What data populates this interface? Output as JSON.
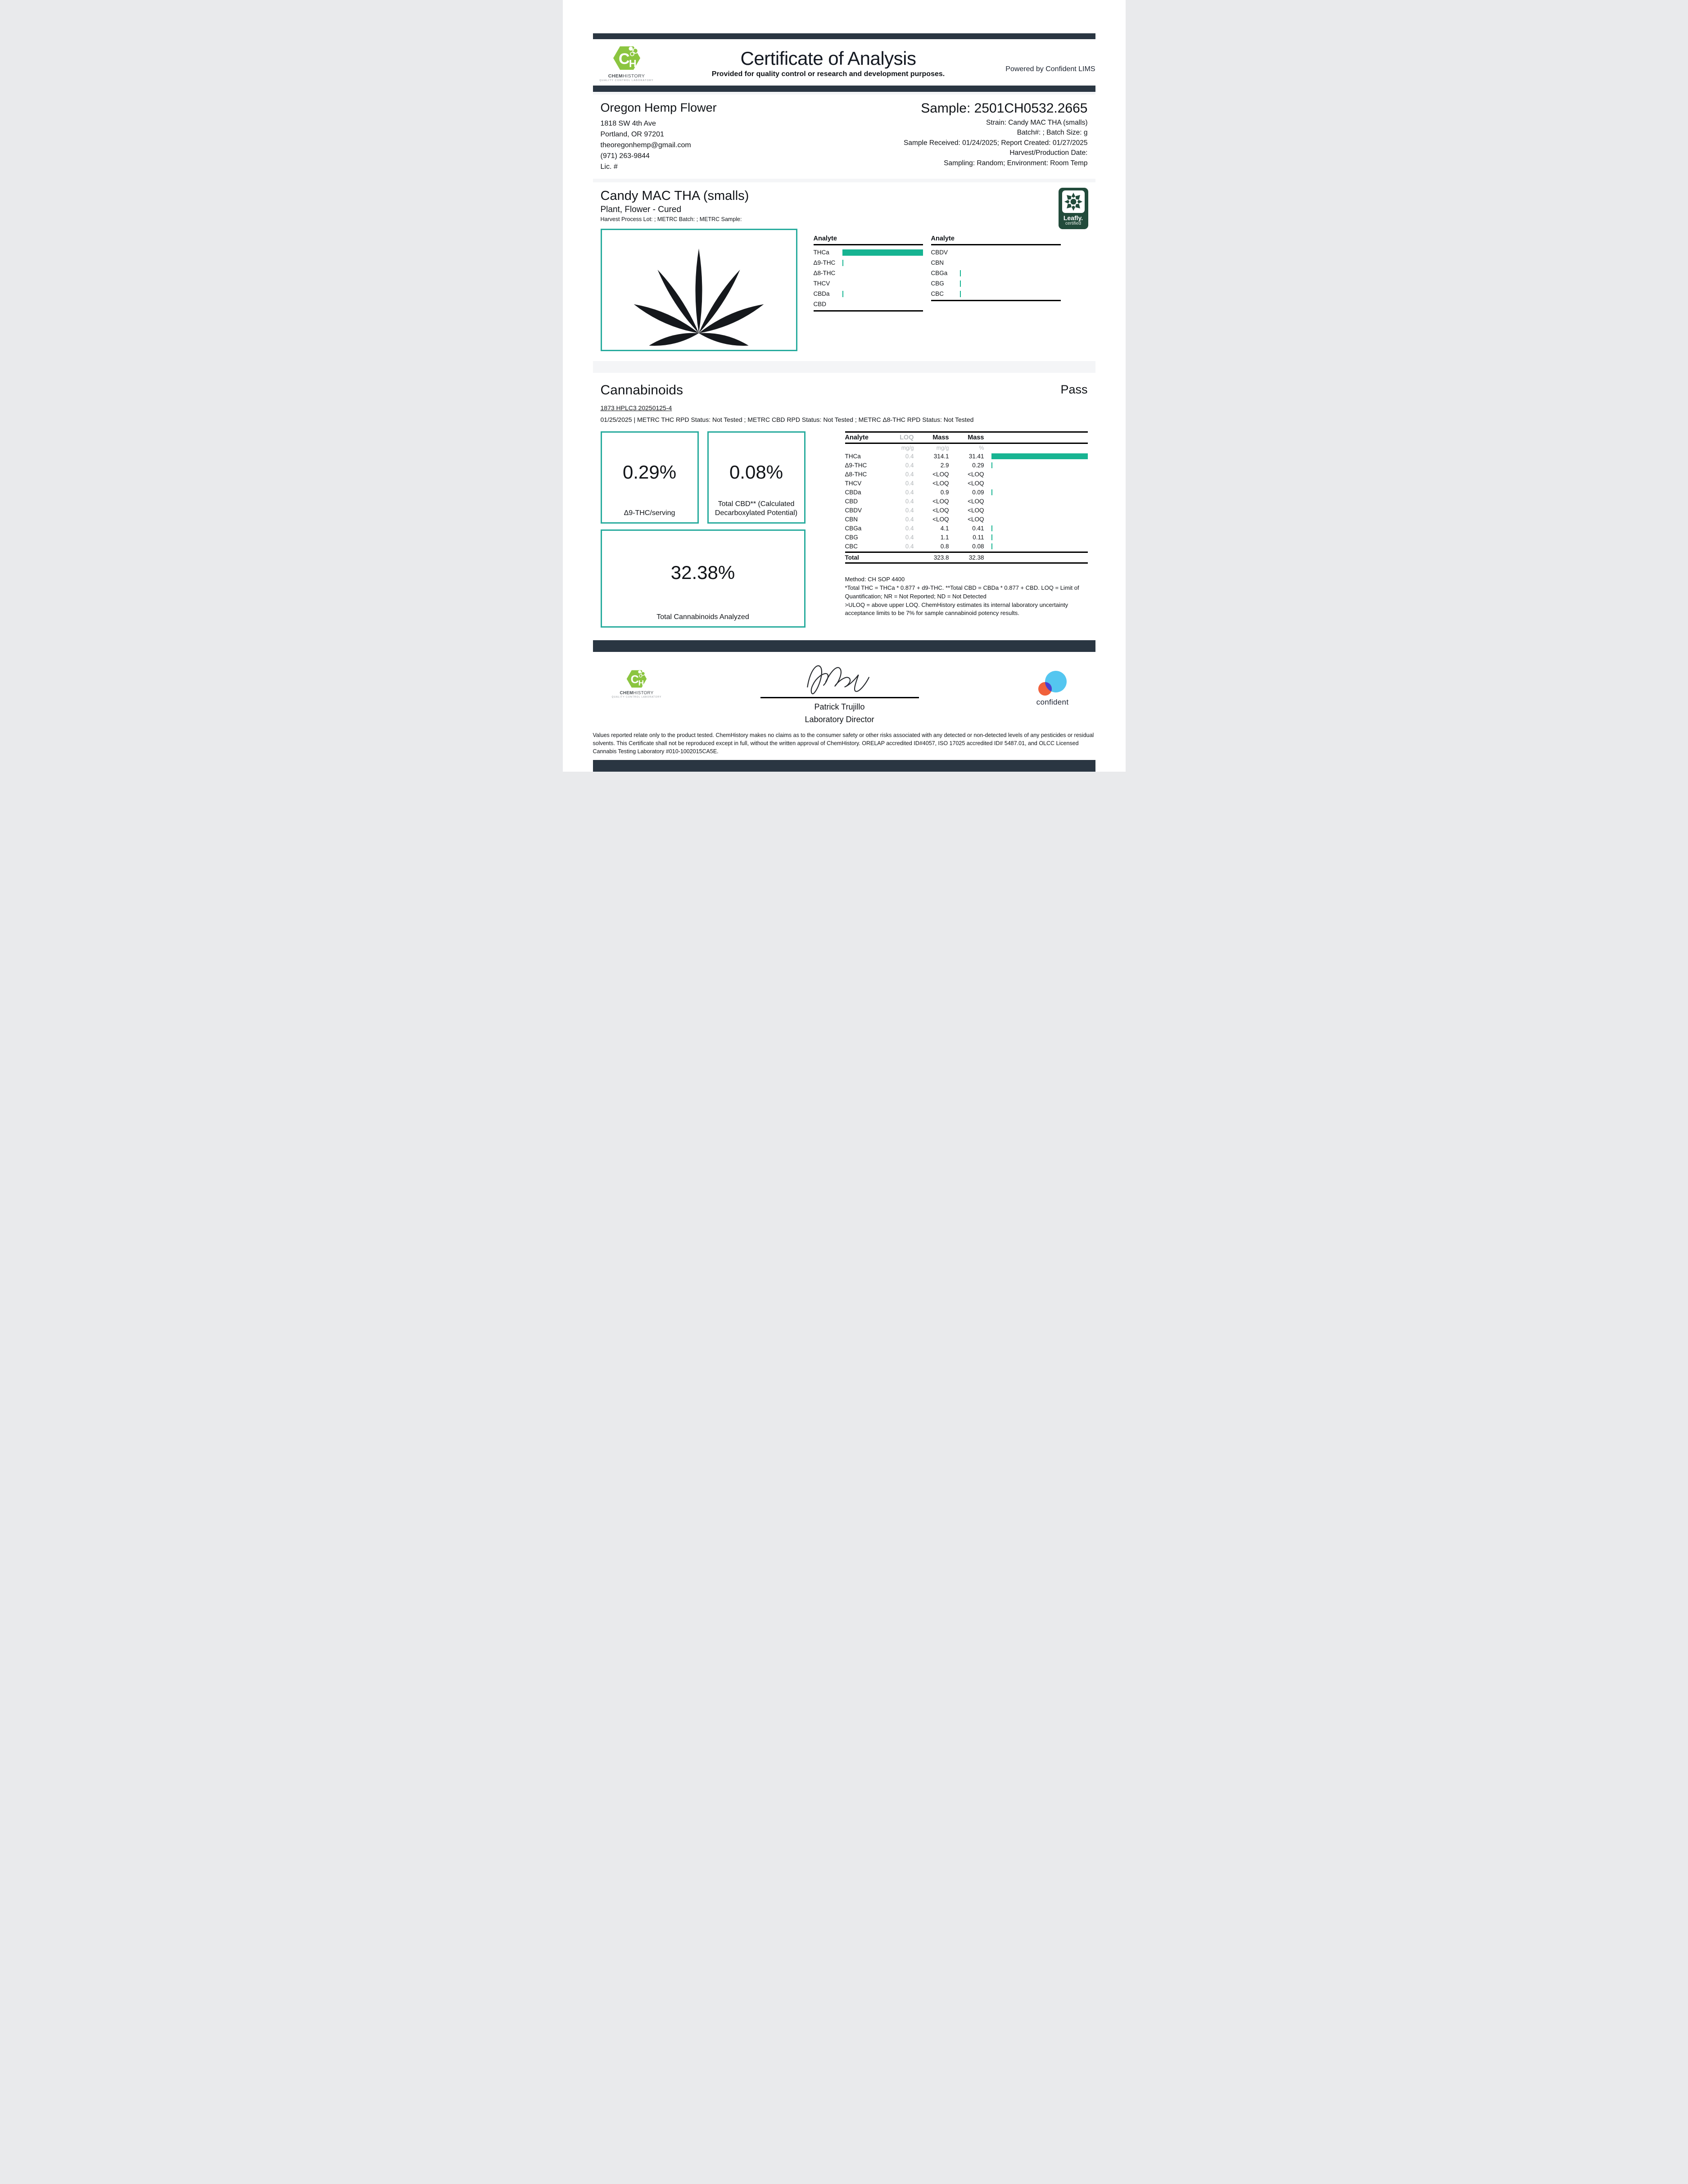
{
  "header": {
    "title": "Certificate of Analysis",
    "subtitle": "Provided for quality control or research and development purposes.",
    "powered_by": "Powered by Confident LIMS",
    "logo": {
      "text_bold": "CHEM",
      "text_rest": "HISTORY",
      "tagline": "QUALITY CONTROL LABORATORY",
      "monogram_c": "C",
      "monogram_h": "H"
    }
  },
  "client": {
    "name": "Oregon Hemp Flower",
    "address1": "1818 SW 4th Ave",
    "address2": "Portland, OR 97201",
    "email": "theoregonhemp@gmail.com",
    "phone": "(971) 263-9844",
    "license": "Lic. #"
  },
  "sample": {
    "id": "Sample: 2501CH0532.2665",
    "strain": "Strain: Candy MAC THA (smalls)",
    "batch": "Batch#: ; Batch Size:  g",
    "received": "Sample Received: 01/24/2025; Report Created: 01/27/2025",
    "harvest": "Harvest/Production Date:",
    "sampling": "Sampling: Random; Environment: Room Temp"
  },
  "product": {
    "name": "Candy MAC THA (smalls)",
    "type": "Plant, Flower - Cured",
    "meta": "Harvest Process Lot: ; METRC Batch: ; METRC Sample:",
    "leafly_line1": "Leafly.",
    "leafly_line2": "certified"
  },
  "chart_data": {
    "type": "bar",
    "title": "Cannabinoid profile (Mass %)",
    "unit": "%",
    "header_label": "Analyte",
    "max_pct": 31.41,
    "left_column": [
      {
        "analyte": "THCa",
        "pct": 31.41
      },
      {
        "analyte": "Δ9-THC",
        "pct": 0.29
      },
      {
        "analyte": "Δ8-THC",
        "pct": 0
      },
      {
        "analyte": "THCV",
        "pct": 0
      },
      {
        "analyte": "CBDa",
        "pct": 0.09
      },
      {
        "analyte": "CBD",
        "pct": 0
      }
    ],
    "right_column": [
      {
        "analyte": "CBDV",
        "pct": 0
      },
      {
        "analyte": "CBN",
        "pct": 0
      },
      {
        "analyte": "CBGa",
        "pct": 0.41
      },
      {
        "analyte": "CBG",
        "pct": 0.11
      },
      {
        "analyte": "CBC",
        "pct": 0.08
      }
    ]
  },
  "cannabinoids": {
    "title": "Cannabinoids",
    "status": "Pass",
    "run_info": "1873 HPLC3 20250125-4",
    "metrc_info": "01/25/2025 | METRC THC RPD Status: Not Tested ; METRC CBD RPD Status: Not Tested ; METRC Δ8-THC RPD Status: Not Tested",
    "highlights": [
      {
        "value": "0.29%",
        "label": "Δ9-THC/serving"
      },
      {
        "value": "0.08%",
        "label": "Total CBD** (Calculated Decarboxylated Potential)"
      },
      {
        "value": "32.38%",
        "label": "Total Cannabinoids Analyzed"
      }
    ],
    "table": {
      "headers": [
        "Analyte",
        "LOQ",
        "Mass",
        "Mass"
      ],
      "units": [
        "",
        "mg/g",
        "mg/g",
        "%"
      ],
      "rows": [
        {
          "analyte": "THCa",
          "loq": "0.4",
          "mass_mgg": "314.1",
          "mass_pct": "31.41",
          "pct": 31.41
        },
        {
          "analyte": "Δ9-THC",
          "loq": "0.4",
          "mass_mgg": "2.9",
          "mass_pct": "0.29",
          "pct": 0.29
        },
        {
          "analyte": "Δ8-THC",
          "loq": "0.4",
          "mass_mgg": "<LOQ",
          "mass_pct": "<LOQ",
          "pct": 0
        },
        {
          "analyte": "THCV",
          "loq": "0.4",
          "mass_mgg": "<LOQ",
          "mass_pct": "<LOQ",
          "pct": 0
        },
        {
          "analyte": "CBDa",
          "loq": "0.4",
          "mass_mgg": "0.9",
          "mass_pct": "0.09",
          "pct": 0.09
        },
        {
          "analyte": "CBD",
          "loq": "0.4",
          "mass_mgg": "<LOQ",
          "mass_pct": "<LOQ",
          "pct": 0
        },
        {
          "analyte": "CBDV",
          "loq": "0.4",
          "mass_mgg": "<LOQ",
          "mass_pct": "<LOQ",
          "pct": 0
        },
        {
          "analyte": "CBN",
          "loq": "0.4",
          "mass_mgg": "<LOQ",
          "mass_pct": "<LOQ",
          "pct": 0
        },
        {
          "analyte": "CBGa",
          "loq": "0.4",
          "mass_mgg": "4.1",
          "mass_pct": "0.41",
          "pct": 0.41
        },
        {
          "analyte": "CBG",
          "loq": "0.4",
          "mass_mgg": "1.1",
          "mass_pct": "0.11",
          "pct": 0.11
        },
        {
          "analyte": "CBC",
          "loq": "0.4",
          "mass_mgg": "0.8",
          "mass_pct": "0.08",
          "pct": 0.08
        }
      ],
      "total": {
        "label": "Total",
        "mass_mgg": "323.8",
        "mass_pct": "32.38"
      }
    },
    "method_lines": [
      "Method: CH SOP 4400",
      "*Total THC = THCa * 0.877 + d9-THC. **Total CBD = CBDa * 0.877 + CBD. LOQ = Limit of Quantification; NR = Not Reported; ND = Not Detected",
      ">ULOQ = above upper LOQ. ChemHistory estimates its internal laboratory uncertainty acceptance limits to be 7% for sample cannabinoid potency results."
    ]
  },
  "footer": {
    "signer_name": "Patrick Trujillo",
    "signer_title": "Laboratory Director",
    "confident_label": "confident",
    "disclaimer": "Values reported relate only to the product tested. ChemHistory makes no claims as to the consumer safety or other risks associated with any detected or non-detected levels of any pesticides or residual solvents. This Certificate shall not be reproduced except in full, without the written approval of ChemHistory.  ORELAP accredited ID#4057, ISO 17025 accredited ID# 5487.01, and OLCC Licensed Cannabis Testing Laboratory #010-1002015CA5E."
  },
  "colors": {
    "accent_teal": "#17b492",
    "teal_border": "#27ab9d",
    "navy_bar": "#2a3642",
    "chemhistory_green": "#8bc540",
    "leafly_green": "#224b3b",
    "muted_gray": "#b3b7ba"
  }
}
